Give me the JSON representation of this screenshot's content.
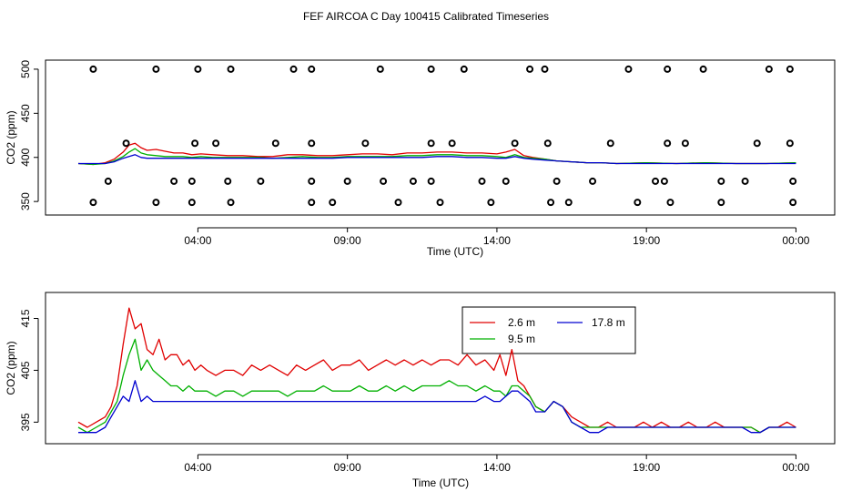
{
  "figure_title": "FEF AIRCOA C  Day 100415  Calibrated Timeseries",
  "chart_data": [
    {
      "type": "line",
      "name": "top-panel",
      "title": "FEF AIRCOA C  Day 100415  Calibrated Timeseries",
      "xlabel": "Time (UTC)",
      "ylabel": "CO2 (ppm)",
      "xlim": [
        0.0,
        24.2
      ],
      "ylim": [
        345,
        502
      ],
      "xticks": [
        {
          "x": 4,
          "label": "04:00"
        },
        {
          "x": 9,
          "label": "09:00"
        },
        {
          "x": 14,
          "label": "14:00"
        },
        {
          "x": 19,
          "label": "19:00"
        },
        {
          "x": 24,
          "label": "00:00"
        }
      ],
      "yticks": [
        {
          "y": 350,
          "label": "350"
        },
        {
          "y": 400,
          "label": "400"
        },
        {
          "y": 450,
          "label": "450"
        },
        {
          "y": 500,
          "label": "500"
        }
      ],
      "series": [
        {
          "name": "2.6 m",
          "color": "#e00000",
          "x": [
            0.0,
            0.5,
            0.9,
            1.2,
            1.5,
            1.7,
            1.9,
            2.1,
            2.3,
            2.6,
            2.9,
            3.2,
            3.5,
            3.8,
            4.1,
            4.5,
            5.0,
            5.5,
            6.0,
            6.5,
            7.0,
            7.5,
            8.0,
            8.5,
            9.0,
            9.5,
            10.0,
            10.5,
            11.0,
            11.5,
            12.0,
            12.5,
            13.0,
            13.5,
            14.0,
            14.3,
            14.6,
            14.9,
            15.2,
            15.6,
            16.0,
            16.5,
            17.0,
            17.5,
            18.0,
            19.0,
            20.0,
            21.0,
            22.0,
            23.0,
            24.0
          ],
          "y": [
            393,
            392,
            394,
            398,
            406,
            414,
            416,
            411,
            408,
            409,
            407,
            405,
            405,
            403,
            404,
            403,
            402,
            402,
            401,
            401,
            403,
            403,
            402,
            402,
            403,
            404,
            404,
            403,
            405,
            405,
            406,
            406,
            405,
            405,
            404,
            406,
            409,
            402,
            400,
            398,
            396,
            395,
            394,
            394,
            393,
            394,
            393,
            394,
            393,
            393,
            394
          ]
        },
        {
          "name": "9.5 m",
          "color": "#00b000",
          "x": [
            0.0,
            0.5,
            0.9,
            1.2,
            1.5,
            1.7,
            1.9,
            2.1,
            2.3,
            2.6,
            2.9,
            3.2,
            3.5,
            3.8,
            4.1,
            4.5,
            5.0,
            5.5,
            6.0,
            6.5,
            7.0,
            7.5,
            8.0,
            8.5,
            9.0,
            9.5,
            10.0,
            10.5,
            11.0,
            11.5,
            12.0,
            12.5,
            13.0,
            13.5,
            14.0,
            14.3,
            14.6,
            14.9,
            15.2,
            15.6,
            16.0,
            16.5,
            17.0,
            17.5,
            18.0,
            19.0,
            20.0,
            21.0,
            22.0,
            23.0,
            24.0
          ],
          "y": [
            393,
            392,
            393,
            396,
            401,
            406,
            410,
            405,
            403,
            402,
            401,
            401,
            401,
            400,
            401,
            400,
            400,
            400,
            400,
            399,
            400,
            401,
            400,
            400,
            401,
            401,
            401,
            401,
            402,
            402,
            403,
            403,
            402,
            402,
            401,
            400,
            403,
            400,
            399,
            398,
            396,
            395,
            394,
            394,
            393,
            394,
            393,
            394,
            393,
            393,
            394
          ]
        },
        {
          "name": "17.8 m",
          "color": "#0000d0",
          "x": [
            0.0,
            0.5,
            0.9,
            1.2,
            1.5,
            1.7,
            1.9,
            2.1,
            2.3,
            2.6,
            2.9,
            3.2,
            3.5,
            3.8,
            4.1,
            4.5,
            5.0,
            5.5,
            6.0,
            6.5,
            7.0,
            7.5,
            8.0,
            8.5,
            9.0,
            9.5,
            10.0,
            10.5,
            11.0,
            11.5,
            12.0,
            12.5,
            13.0,
            13.5,
            14.0,
            14.3,
            14.6,
            14.9,
            15.2,
            15.6,
            16.0,
            16.5,
            17.0,
            17.5,
            18.0,
            19.0,
            20.0,
            21.0,
            22.0,
            23.0,
            24.0
          ],
          "y": [
            393,
            393,
            393,
            395,
            399,
            401,
            403,
            400,
            399,
            399,
            399,
            399,
            399,
            399,
            399,
            399,
            399,
            399,
            399,
            399,
            399,
            399,
            399,
            399,
            400,
            400,
            400,
            400,
            400,
            400,
            401,
            401,
            400,
            400,
            399,
            399,
            401,
            399,
            398,
            397,
            396,
            395,
            394,
            394,
            393,
            393,
            393,
            393,
            393,
            393,
            393
          ]
        }
      ],
      "calibration_points": {
        "style": "open-circle",
        "x": [
          0.5,
          2.6,
          4.0,
          5.1,
          7.2,
          7.8,
          10.1,
          11.8,
          12.9,
          15.1,
          15.6,
          18.4,
          19.7,
          20.9,
          23.1,
          23.8,
          1.6,
          3.9,
          4.6,
          6.6,
          7.8,
          9.6,
          11.8,
          12.5,
          14.6,
          15.7,
          17.8,
          19.7,
          20.3,
          22.7,
          23.8,
          1.0,
          3.2,
          3.8,
          5.0,
          6.1,
          7.8,
          9.0,
          10.2,
          11.2,
          11.8,
          13.5,
          14.3,
          16.0,
          17.2,
          19.3,
          19.6,
          21.5,
          22.3,
          23.9,
          0.5,
          2.6,
          3.8,
          5.1,
          7.8,
          8.5,
          10.7,
          12.1,
          13.8,
          15.8,
          16.4,
          18.7,
          19.8,
          21.5,
          23.9
        ],
        "y": [
          500,
          500,
          500,
          500,
          500,
          500,
          500,
          500,
          500,
          500,
          500,
          500,
          500,
          500,
          500,
          500,
          416,
          416,
          416,
          416,
          416,
          416,
          416,
          416,
          416,
          416,
          416,
          416,
          416,
          416,
          416,
          373,
          373,
          373,
          373,
          373,
          373,
          373,
          373,
          373,
          373,
          373,
          373,
          373,
          373,
          373,
          373,
          373,
          373,
          373,
          349,
          349,
          349,
          349,
          349,
          349,
          349,
          349,
          349,
          349,
          349,
          349,
          349,
          349,
          349
        ]
      }
    },
    {
      "type": "line",
      "name": "bottom-panel",
      "title": "",
      "xlabel": "Time (UTC)",
      "ylabel": "CO2 (ppm)",
      "xlim": [
        0.0,
        24.2
      ],
      "ylim": [
        392.6,
        418.6
      ],
      "xticks": [
        {
          "x": 4,
          "label": "04:00"
        },
        {
          "x": 9,
          "label": "09:00"
        },
        {
          "x": 14,
          "label": "14:00"
        },
        {
          "x": 19,
          "label": "19:00"
        },
        {
          "x": 24,
          "label": "00:00"
        }
      ],
      "yticks": [
        {
          "y": 395,
          "label": "395"
        },
        {
          "y": 405,
          "label": "405"
        },
        {
          "y": 415,
          "label": "415"
        }
      ],
      "legend": {
        "position": "top-right-inset",
        "entries": [
          {
            "label": "2.6 m",
            "color": "#e00000"
          },
          {
            "label": "17.8 m",
            "color": "#0000d0"
          },
          {
            "label": "9.5 m",
            "color": "#00b000"
          }
        ]
      },
      "series": [
        {
          "name": "2.6 m",
          "color": "#e00000",
          "x": [
            0.0,
            0.3,
            0.6,
            0.9,
            1.1,
            1.3,
            1.5,
            1.7,
            1.9,
            2.1,
            2.3,
            2.5,
            2.7,
            2.9,
            3.1,
            3.3,
            3.5,
            3.7,
            3.9,
            4.1,
            4.3,
            4.6,
            4.9,
            5.2,
            5.5,
            5.8,
            6.1,
            6.4,
            6.7,
            7.0,
            7.3,
            7.6,
            7.9,
            8.2,
            8.5,
            8.8,
            9.1,
            9.4,
            9.7,
            10.0,
            10.3,
            10.6,
            10.9,
            11.2,
            11.5,
            11.8,
            12.1,
            12.4,
            12.7,
            13.0,
            13.3,
            13.6,
            13.9,
            14.1,
            14.3,
            14.5,
            14.7,
            14.9,
            15.1,
            15.3,
            15.6,
            15.9,
            16.2,
            16.5,
            16.8,
            17.1,
            17.4,
            17.7,
            18.0,
            18.3,
            18.6,
            18.9,
            19.2,
            19.5,
            19.8,
            20.1,
            20.4,
            20.7,
            21.0,
            21.3,
            21.6,
            21.9,
            22.2,
            22.5,
            22.8,
            23.1,
            23.4,
            23.7,
            24.0
          ],
          "y": [
            395,
            394,
            395,
            396,
            398,
            402,
            410,
            417,
            413,
            414,
            409,
            408,
            411,
            407,
            408,
            408,
            406,
            407,
            405,
            406,
            405,
            404,
            405,
            405,
            404,
            406,
            405,
            406,
            405,
            404,
            406,
            405,
            406,
            407,
            405,
            406,
            406,
            407,
            405,
            406,
            407,
            406,
            407,
            406,
            407,
            406,
            407,
            407,
            406,
            408,
            406,
            407,
            405,
            408,
            404,
            409,
            403,
            402,
            400,
            398,
            397,
            399,
            398,
            396,
            395,
            394,
            394,
            395,
            394,
            394,
            394,
            395,
            394,
            395,
            394,
            394,
            395,
            394,
            394,
            395,
            394,
            394,
            394,
            394,
            393,
            394,
            394,
            395,
            394
          ]
        },
        {
          "name": "9.5 m",
          "color": "#00b000",
          "x": [
            0.0,
            0.3,
            0.6,
            0.9,
            1.1,
            1.3,
            1.5,
            1.7,
            1.9,
            2.1,
            2.3,
            2.5,
            2.7,
            2.9,
            3.1,
            3.3,
            3.5,
            3.7,
            3.9,
            4.1,
            4.3,
            4.6,
            4.9,
            5.2,
            5.5,
            5.8,
            6.1,
            6.4,
            6.7,
            7.0,
            7.3,
            7.6,
            7.9,
            8.2,
            8.5,
            8.8,
            9.1,
            9.4,
            9.7,
            10.0,
            10.3,
            10.6,
            10.9,
            11.2,
            11.5,
            11.8,
            12.1,
            12.4,
            12.7,
            13.0,
            13.3,
            13.6,
            13.9,
            14.1,
            14.3,
            14.5,
            14.7,
            14.9,
            15.1,
            15.3,
            15.6,
            15.9,
            16.2,
            16.5,
            16.8,
            17.1,
            17.4,
            17.7,
            18.0,
            18.3,
            18.6,
            18.9,
            19.2,
            19.5,
            19.8,
            20.1,
            20.4,
            20.7,
            21.0,
            21.3,
            21.6,
            21.9,
            22.2,
            22.5,
            22.8,
            23.1,
            23.4,
            23.7,
            24.0
          ],
          "y": [
            394,
            393,
            394,
            395,
            397,
            399,
            404,
            408,
            411,
            405,
            407,
            405,
            404,
            403,
            402,
            402,
            401,
            402,
            401,
            401,
            401,
            400,
            401,
            401,
            400,
            401,
            401,
            401,
            401,
            400,
            401,
            401,
            401,
            402,
            401,
            401,
            401,
            402,
            401,
            401,
            402,
            401,
            402,
            401,
            402,
            402,
            402,
            403,
            402,
            402,
            401,
            402,
            401,
            401,
            400,
            402,
            402,
            401,
            400,
            398,
            397,
            399,
            398,
            395,
            394,
            394,
            394,
            394,
            394,
            394,
            394,
            394,
            394,
            394,
            394,
            394,
            394,
            394,
            394,
            394,
            394,
            394,
            394,
            394,
            393,
            394,
            394,
            394,
            394
          ]
        },
        {
          "name": "17.8 m",
          "color": "#0000d0",
          "x": [
            0.0,
            0.3,
            0.6,
            0.9,
            1.1,
            1.3,
            1.5,
            1.7,
            1.9,
            2.1,
            2.3,
            2.5,
            2.7,
            2.9,
            3.1,
            3.3,
            3.5,
            3.7,
            3.9,
            4.1,
            4.3,
            4.6,
            4.9,
            5.2,
            5.5,
            5.8,
            6.1,
            6.4,
            6.7,
            7.0,
            7.3,
            7.6,
            7.9,
            8.2,
            8.5,
            8.8,
            9.1,
            9.4,
            9.7,
            10.0,
            10.3,
            10.6,
            10.9,
            11.2,
            11.5,
            11.8,
            12.1,
            12.4,
            12.7,
            13.0,
            13.3,
            13.6,
            13.9,
            14.1,
            14.3,
            14.5,
            14.7,
            14.9,
            15.1,
            15.3,
            15.6,
            15.9,
            16.2,
            16.5,
            16.8,
            17.1,
            17.4,
            17.7,
            18.0,
            18.3,
            18.6,
            18.9,
            19.2,
            19.5,
            19.8,
            20.1,
            20.4,
            20.7,
            21.0,
            21.3,
            21.6,
            21.9,
            22.2,
            22.5,
            22.8,
            23.1,
            23.4,
            23.7,
            24.0
          ],
          "y": [
            393,
            393,
            393,
            394,
            396,
            398,
            400,
            399,
            403,
            399,
            400,
            399,
            399,
            399,
            399,
            399,
            399,
            399,
            399,
            399,
            399,
            399,
            399,
            399,
            399,
            399,
            399,
            399,
            399,
            399,
            399,
            399,
            399,
            399,
            399,
            399,
            399,
            399,
            399,
            399,
            399,
            399,
            399,
            399,
            399,
            399,
            399,
            399,
            399,
            399,
            399,
            400,
            399,
            399,
            400,
            401,
            401,
            400,
            399,
            397,
            397,
            399,
            398,
            395,
            394,
            393,
            393,
            394,
            394,
            394,
            394,
            394,
            394,
            394,
            394,
            394,
            394,
            394,
            394,
            394,
            394,
            394,
            394,
            393,
            393,
            394,
            394,
            394,
            394
          ]
        }
      ]
    }
  ]
}
